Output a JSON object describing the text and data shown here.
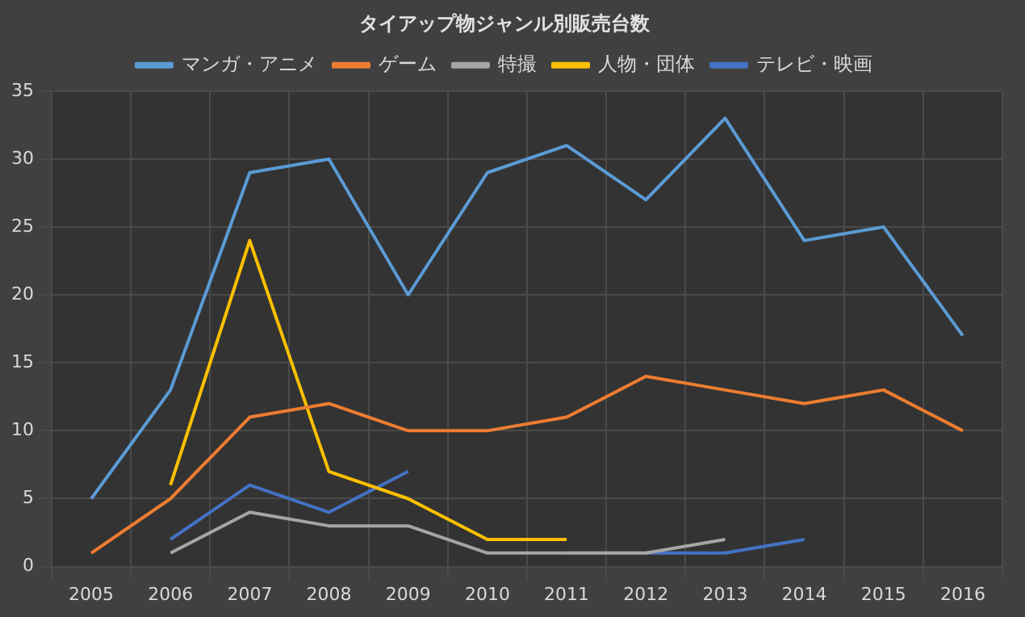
{
  "chart_data": {
    "type": "line",
    "title": "タイアップ物ジャンル別販売台数",
    "categories": [
      "2005",
      "2006",
      "2007",
      "2008",
      "2009",
      "2010",
      "2011",
      "2012",
      "2013",
      "2014",
      "2015",
      "2016"
    ],
    "series": [
      {
        "name": "マンガ・アニメ",
        "color": "#5b9bd5",
        "values": [
          5,
          13,
          29,
          30,
          20,
          29,
          31,
          27,
          33,
          24,
          25,
          17
        ]
      },
      {
        "name": "ゲーム",
        "color": "#ed7d31",
        "values": [
          1,
          5,
          11,
          12,
          10,
          10,
          11,
          14,
          13,
          12,
          13,
          10
        ]
      },
      {
        "name": "特撮",
        "color": "#a5a5a5",
        "values": [
          null,
          1,
          4,
          3,
          3,
          1,
          1,
          1,
          2,
          null,
          null,
          null
        ]
      },
      {
        "name": "人物・団体",
        "color": "#ffc000",
        "values": [
          null,
          6,
          24,
          7,
          5,
          2,
          2,
          null,
          null,
          null,
          null,
          null
        ]
      },
      {
        "name": "テレビ・映画",
        "color": "#4472c4",
        "values": [
          null,
          2,
          6,
          4,
          7,
          null,
          1,
          1,
          1,
          2,
          null,
          null
        ]
      }
    ],
    "ylim": [
      0,
      35
    ],
    "yticks": [
      0,
      5,
      10,
      15,
      20,
      25,
      30,
      35
    ],
    "grid": true,
    "legend": "top",
    "marker": "none",
    "line_style": "solid"
  }
}
